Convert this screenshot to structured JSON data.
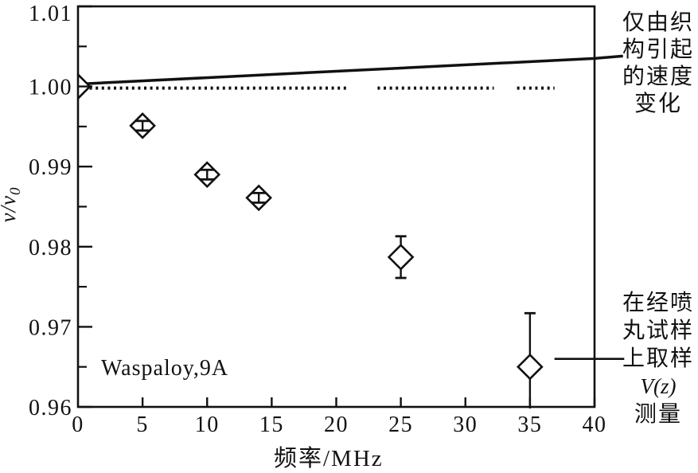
{
  "figure": {
    "background": "#ffffff",
    "ink": "#111111"
  },
  "chart_data": {
    "type": "scatter",
    "title": "",
    "xlabel": "频率/MHz",
    "ylabel": "v/v0",
    "ylabel_main": "v/v",
    "ylabel_sub": "0",
    "xlim": [
      0,
      40
    ],
    "ylim": [
      0.96,
      1.01
    ],
    "grid": false,
    "legend_position": "none",
    "x_ticks": [
      0,
      5,
      10,
      15,
      20,
      25,
      30,
      35,
      40
    ],
    "x_tick_labels": [
      "0",
      "5",
      "10",
      "15",
      "20",
      "25",
      "30",
      "35",
      "40"
    ],
    "y_ticks": [
      0.96,
      0.97,
      0.98,
      0.99,
      1.0,
      1.01
    ],
    "y_tick_labels": [
      "0.96",
      "0.97",
      "0.98",
      "0.99",
      "1.00",
      "1.01"
    ],
    "y_minor_ticks": [
      0.965,
      0.975,
      0.985,
      0.995,
      1.005
    ],
    "series": [
      {
        "name": "V(z) measurements on shot-peened Waspaloy specimen",
        "type": "scatter",
        "marker": "open-diamond",
        "points": [
          {
            "x": 0,
            "y": 1.0,
            "err_plus": 0,
            "err_minus": 0
          },
          {
            "x": 5,
            "y": 0.9951,
            "err_plus": 0.0006,
            "err_minus": 0.0006
          },
          {
            "x": 10,
            "y": 0.989,
            "err_plus": 0.0006,
            "err_minus": 0.0006
          },
          {
            "x": 14,
            "y": 0.9861,
            "err_plus": 0.0006,
            "err_minus": 0.0006
          },
          {
            "x": 25,
            "y": 0.9787,
            "err_plus": 0.0026,
            "err_minus": 0.0026
          },
          {
            "x": 35,
            "y": 0.965,
            "err_plus": 0.0067,
            "err_minus": 0.0067
          }
        ]
      },
      {
        "name": "texture-only velocity change",
        "type": "line",
        "points_xy": [
          [
            0,
            1.0003
          ],
          [
            40,
            1.0035
          ],
          [
            42.2,
            1.0038
          ]
        ]
      },
      {
        "name": "reference level v/v0 = 1",
        "type": "dotted-line",
        "y": 0.9998,
        "segments_x": [
          [
            0.9,
            21.0
          ],
          [
            23.2,
            32.2
          ],
          [
            34.0,
            36.9
          ]
        ]
      }
    ],
    "annotations": {
      "sample_label": "Waspaloy,9A",
      "texture_label": "仅由织构引起的速度变化",
      "texture_label_lines": [
        "仅由织",
        "构引起",
        "的速度",
        "变化"
      ],
      "vz_label": "在经喷丸试样上取样V(z)测量",
      "vz_label_lines": [
        "在经喷",
        "丸试样",
        "上取样",
        "V(z)",
        "测量"
      ],
      "leader_lines": [
        {
          "name": "vz-label-leader-line",
          "from": [
            36.9,
            0.966
          ],
          "to": [
            42.3,
            0.966
          ]
        }
      ]
    }
  }
}
